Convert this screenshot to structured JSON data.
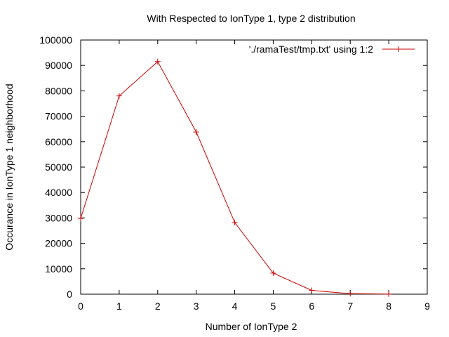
{
  "chart_data": {
    "type": "line",
    "title": "With Respected to IonType 1, type 2 distribution",
    "xlabel": "Number of IonType 2",
    "ylabel": "Occurance in IonType 1 neighborhood",
    "xlim": [
      0,
      9
    ],
    "ylim": [
      0,
      100000
    ],
    "x_ticks": [
      0,
      1,
      2,
      3,
      4,
      5,
      6,
      7,
      8,
      9
    ],
    "x_tick_labels": [
      "0",
      "1",
      "2",
      "3",
      "4",
      "5",
      "6",
      "7",
      "8",
      "9"
    ],
    "y_ticks": [
      0,
      10000,
      20000,
      30000,
      40000,
      50000,
      60000,
      70000,
      80000,
      90000,
      100000
    ],
    "y_tick_labels": [
      "0",
      "10000",
      "20000",
      "30000",
      "40000",
      "50000",
      "60000",
      "70000",
      "80000",
      "90000",
      "100000"
    ],
    "grid": false,
    "legend_position": "top-right",
    "series": [
      {
        "name": "'./ramaTest/tmp.txt' using 1:2",
        "color": "#cc0000",
        "marker": "plus",
        "x": [
          0,
          1,
          2,
          3,
          4,
          5,
          6,
          7,
          8
        ],
        "y": [
          29800,
          78000,
          91500,
          63800,
          28200,
          8300,
          1500,
          200,
          30
        ]
      }
    ]
  }
}
